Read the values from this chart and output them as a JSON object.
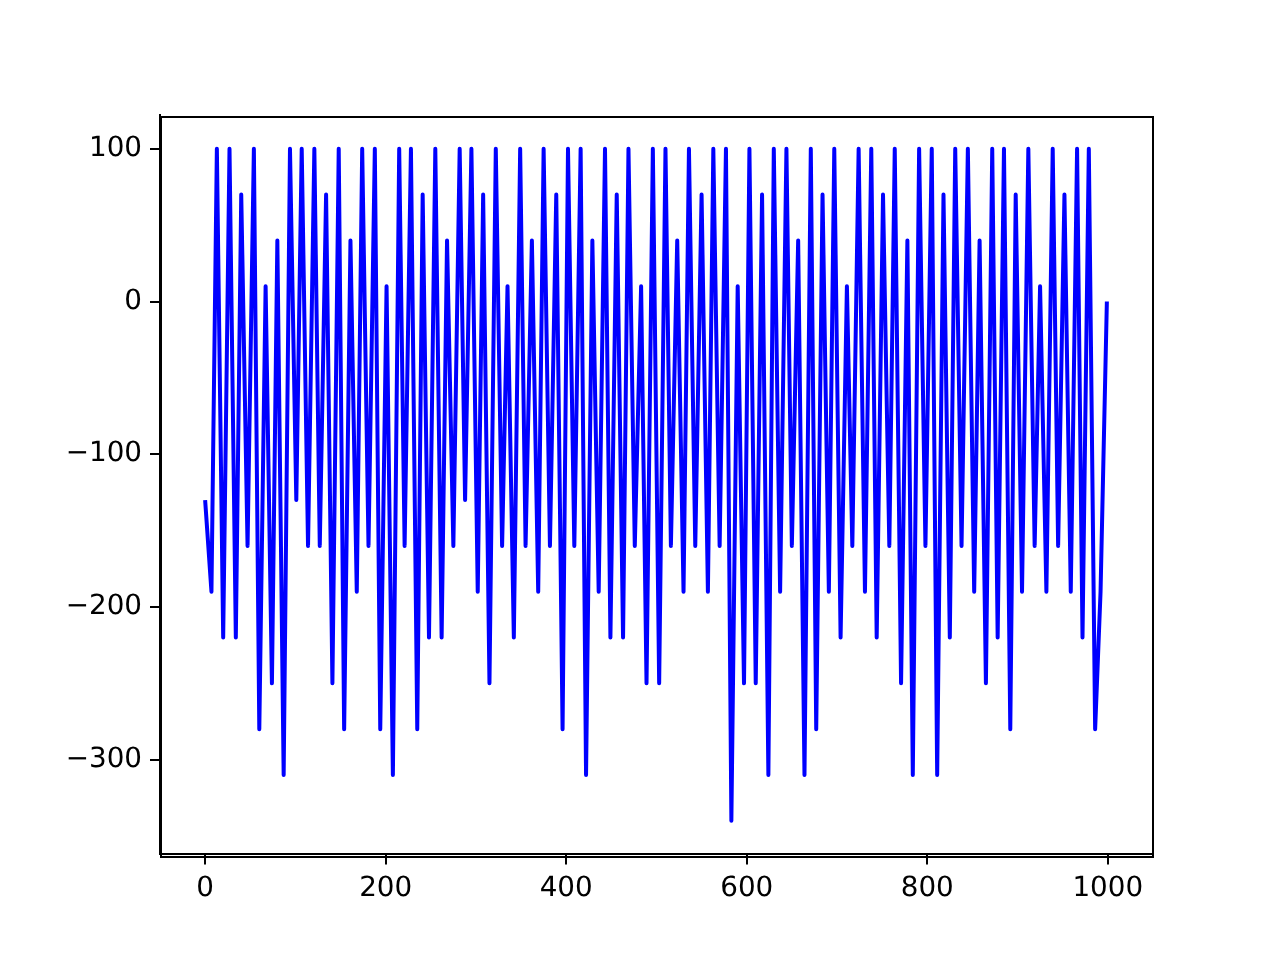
{
  "chart_data": {
    "type": "line",
    "x": [
      0,
      7,
      13,
      20,
      27,
      34,
      40,
      47,
      54,
      60,
      67,
      74,
      80,
      87,
      94,
      101,
      107,
      114,
      121,
      127,
      134,
      141,
      148,
      154,
      161,
      168,
      174,
      181,
      188,
      194,
      201,
      208,
      215,
      221,
      228,
      235,
      241,
      248,
      255,
      262,
      268,
      275,
      282,
      288,
      295,
      302,
      308,
      315,
      322,
      329,
      335,
      342,
      349,
      355,
      362,
      369,
      375,
      382,
      389,
      396,
      402,
      409,
      416,
      422,
      429,
      436,
      443,
      449,
      456,
      463,
      469,
      476,
      483,
      489,
      496,
      503,
      510,
      516,
      523,
      530,
      536,
      543,
      550,
      557,
      563,
      570,
      577,
      583,
      590,
      597,
      603,
      610,
      617,
      624,
      630,
      637,
      644,
      650,
      657,
      664,
      671,
      677,
      684,
      691,
      697,
      704,
      711,
      717,
      724,
      731,
      738,
      744,
      751,
      758,
      764,
      771,
      778,
      784,
      791,
      798,
      805,
      811,
      818,
      825,
      831,
      838,
      845,
      852,
      858,
      865,
      872,
      878,
      885,
      892,
      898,
      905,
      912,
      919,
      925,
      932,
      939,
      945,
      952,
      959,
      966,
      972,
      979,
      986,
      992,
      999
    ],
    "series": [
      {
        "color": "#0000ff",
        "values": [
          -130,
          -190,
          100,
          -220,
          100,
          -220,
          70,
          -160,
          100,
          -280,
          10,
          -250,
          40,
          -310,
          100,
          -130,
          100,
          -160,
          100,
          -160,
          70,
          -250,
          100,
          -280,
          40,
          -190,
          100,
          -160,
          100,
          -280,
          10,
          -310,
          100,
          -160,
          100,
          -280,
          70,
          -220,
          100,
          -220,
          40,
          -160,
          100,
          -130,
          100,
          -190,
          70,
          -250,
          100,
          -160,
          10,
          -220,
          100,
          -160,
          40,
          -190,
          100,
          -160,
          70,
          -280,
          100,
          -160,
          100,
          -310,
          40,
          -190,
          100,
          -220,
          70,
          -220,
          100,
          -160,
          10,
          -250,
          100,
          -250,
          100,
          -160,
          40,
          -190,
          100,
          -160,
          70,
          -190,
          100,
          -160,
          100,
          -340,
          10,
          -250,
          100,
          -250,
          70,
          -310,
          100,
          -190,
          100,
          -160,
          40,
          -310,
          100,
          -280,
          70,
          -190,
          100,
          -220,
          10,
          -160,
          100,
          -190,
          100,
          -220,
          70,
          -160,
          100,
          -250,
          40,
          -310,
          100,
          -160,
          100,
          -310,
          70,
          -220,
          100,
          -160,
          100,
          -190,
          40,
          -250,
          100,
          -220,
          100,
          -280,
          70,
          -190,
          100,
          -160,
          10,
          -190,
          100,
          -160,
          70,
          -190,
          100,
          -220,
          100,
          -280,
          -190,
          0
        ]
      }
    ],
    "xlim": [
      -50,
      1049
    ],
    "ylim": [
      -362,
      122
    ],
    "xticks": [
      0,
      200,
      400,
      600,
      800,
      1000
    ],
    "yticks": [
      {
        "value": -300,
        "label": "−300"
      },
      {
        "value": -200,
        "label": "−200"
      },
      {
        "value": -100,
        "label": "−100"
      },
      0,
      100
    ]
  }
}
